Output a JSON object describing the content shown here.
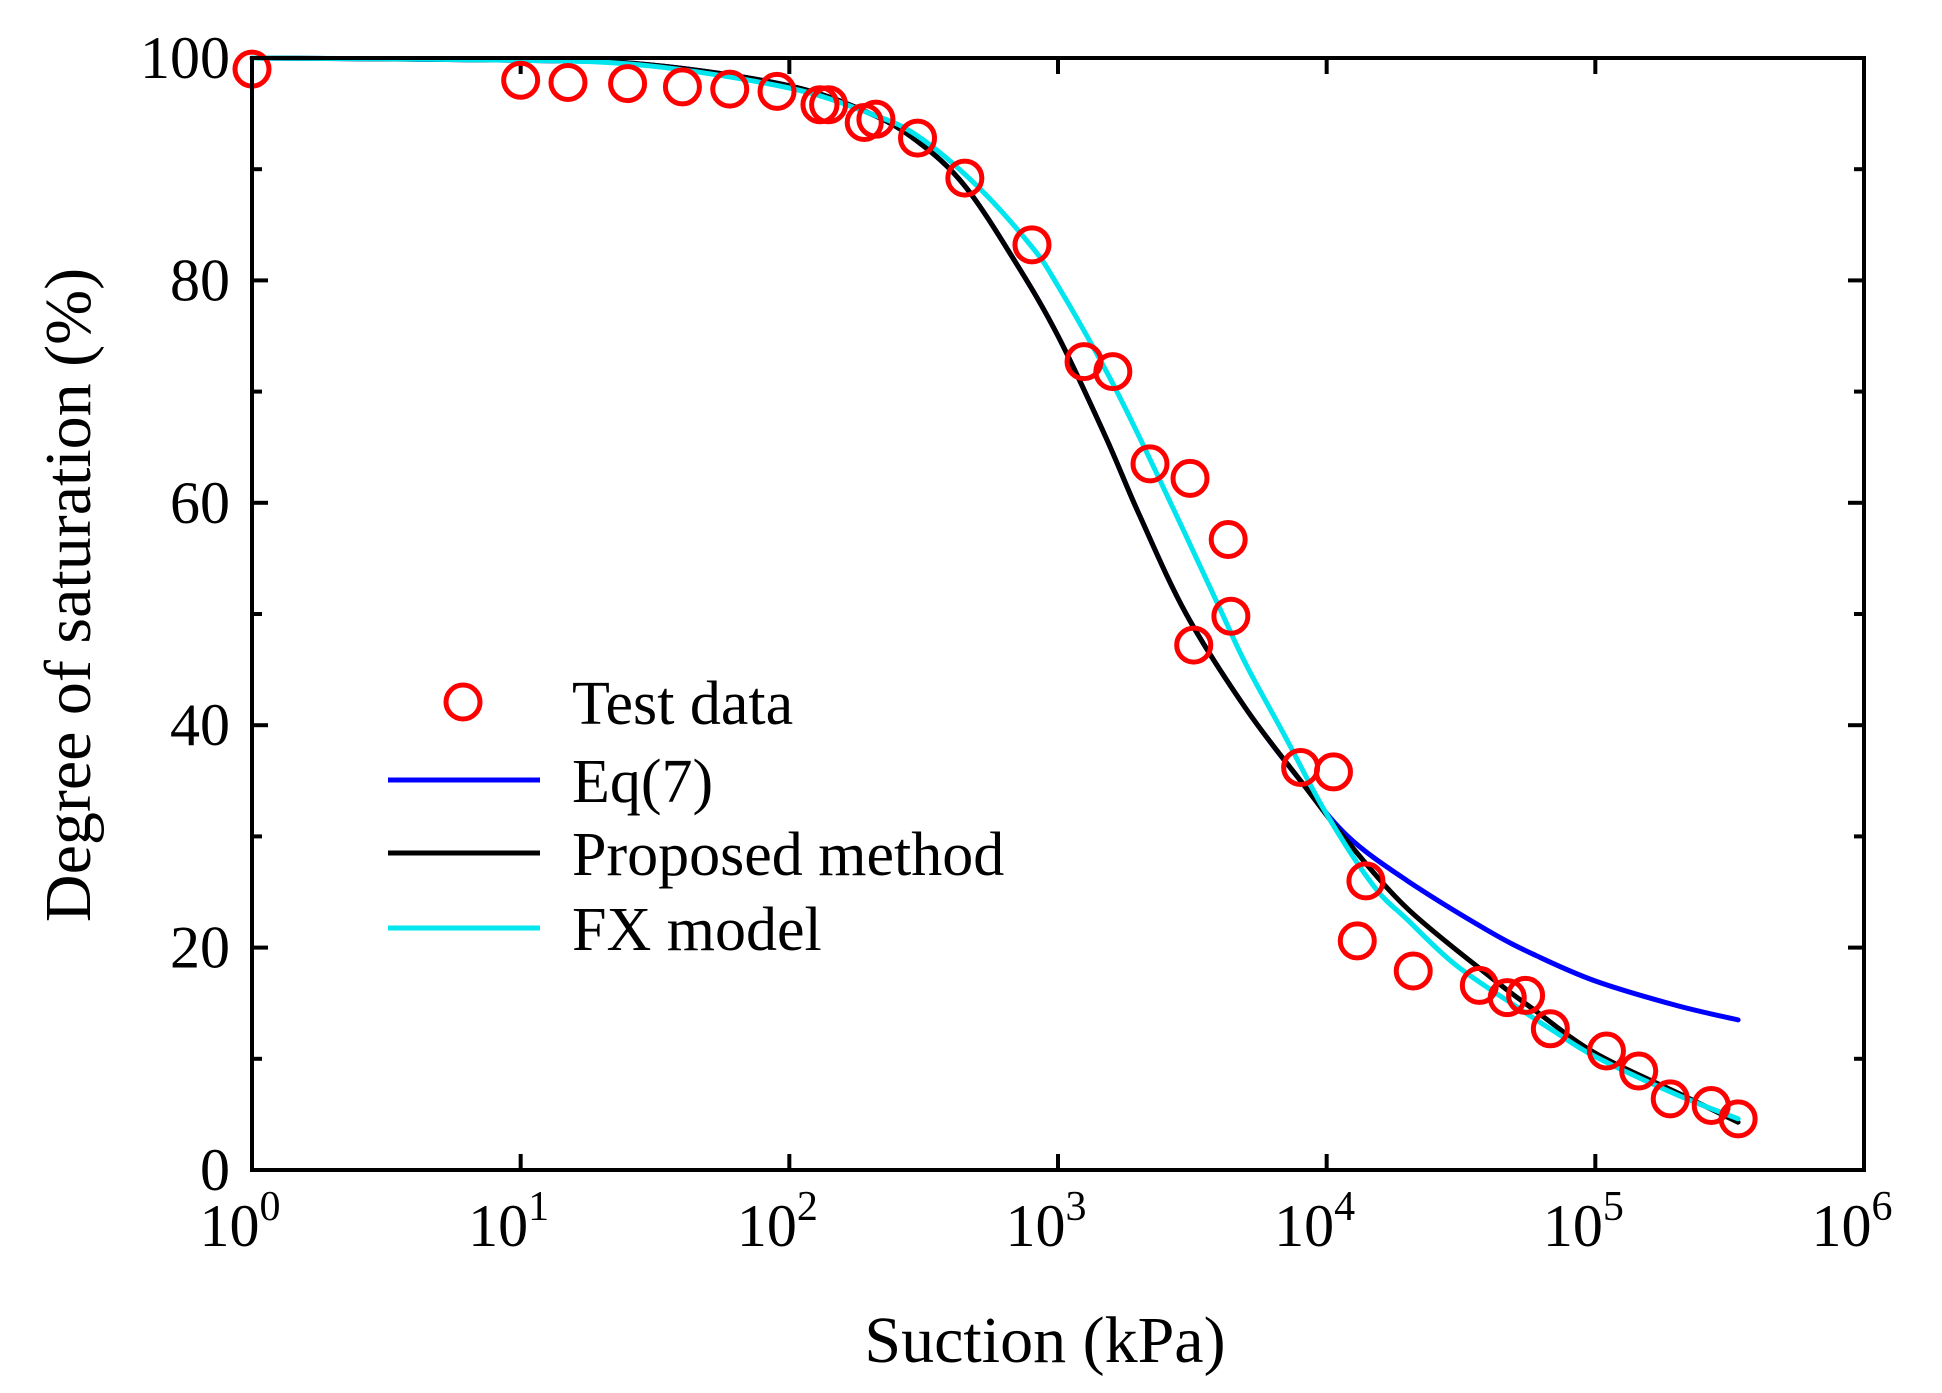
{
  "chart_data": {
    "type": "scatter",
    "title": "",
    "xlabel": "Suction (kPa)",
    "ylabel": "Degree of saturation (%)",
    "xscale": "log",
    "xlim": [
      1,
      1000000
    ],
    "ylim": [
      0,
      100
    ],
    "x_ticks": [
      {
        "value": 1,
        "base": "10",
        "exp": "0"
      },
      {
        "value": 10,
        "base": "10",
        "exp": "1"
      },
      {
        "value": 100,
        "base": "10",
        "exp": "2"
      },
      {
        "value": 1000,
        "base": "10",
        "exp": "3"
      },
      {
        "value": 10000,
        "base": "10",
        "exp": "4"
      },
      {
        "value": 100000,
        "base": "10",
        "exp": "5"
      },
      {
        "value": 1000000,
        "base": "10",
        "exp": "6"
      }
    ],
    "y_ticks": [
      {
        "value": 0,
        "label": "0"
      },
      {
        "value": 20,
        "label": "20"
      },
      {
        "value": 40,
        "label": "40"
      },
      {
        "value": 60,
        "label": "60"
      },
      {
        "value": 80,
        "label": "80"
      },
      {
        "value": 100,
        "label": "100"
      }
    ],
    "y_minor_ticks": [
      10,
      30,
      50,
      70,
      90
    ],
    "legend_position": "center-left",
    "series": [
      {
        "name": "Test data",
        "kind": "markers",
        "color": "#ff0000",
        "points": [
          [
            1,
            99.0
          ],
          [
            10,
            98.0
          ],
          [
            15,
            97.8
          ],
          [
            25,
            97.7
          ],
          [
            40,
            97.4
          ],
          [
            60,
            97.2
          ],
          [
            90,
            97.0
          ],
          [
            130,
            95.8
          ],
          [
            140,
            95.8
          ],
          [
            190,
            94.2
          ],
          [
            210,
            94.5
          ],
          [
            300,
            92.8
          ],
          [
            450,
            89.2
          ],
          [
            800,
            83.2
          ],
          [
            1250,
            72.7
          ],
          [
            1600,
            71.8
          ],
          [
            2200,
            63.5
          ],
          [
            3100,
            62.2
          ],
          [
            3200,
            47.2
          ],
          [
            4300,
            56.7
          ],
          [
            4400,
            49.8
          ],
          [
            8000,
            36.2
          ],
          [
            10600,
            35.8
          ],
          [
            13000,
            20.6
          ],
          [
            14000,
            26.0
          ],
          [
            21000,
            17.9
          ],
          [
            37000,
            16.6
          ],
          [
            47000,
            15.5
          ],
          [
            55000,
            15.7
          ],
          [
            68000,
            12.7
          ],
          [
            110000,
            10.7
          ],
          [
            145000,
            8.9
          ],
          [
            190000,
            6.4
          ],
          [
            270000,
            5.8
          ],
          [
            340000,
            4.6
          ]
        ]
      },
      {
        "name": "Eq(7)",
        "kind": "line",
        "color": "#0000ff",
        "points": [
          [
            1,
            100.0
          ],
          [
            10,
            99.8
          ],
          [
            30,
            99.4
          ],
          [
            100,
            97.5
          ],
          [
            200,
            95.0
          ],
          [
            300,
            92.5
          ],
          [
            450,
            88.5
          ],
          [
            700,
            81.5
          ],
          [
            1000,
            75.0
          ],
          [
            1500,
            66.0
          ],
          [
            2000,
            59.0
          ],
          [
            3000,
            50.0
          ],
          [
            5000,
            41.5
          ],
          [
            8000,
            35.0
          ],
          [
            12000,
            30.0
          ],
          [
            20000,
            26.0
          ],
          [
            40000,
            21.5
          ],
          [
            60000,
            19.3
          ],
          [
            100000,
            17.0
          ],
          [
            200000,
            14.8
          ],
          [
            340000,
            13.5
          ]
        ]
      },
      {
        "name": "Proposed method",
        "kind": "line",
        "color": "#000000",
        "points": [
          [
            1,
            100.0
          ],
          [
            10,
            99.8
          ],
          [
            30,
            99.4
          ],
          [
            100,
            97.5
          ],
          [
            200,
            95.0
          ],
          [
            300,
            92.5
          ],
          [
            450,
            88.5
          ],
          [
            700,
            81.5
          ],
          [
            1000,
            75.0
          ],
          [
            1500,
            66.0
          ],
          [
            2000,
            59.0
          ],
          [
            3000,
            50.0
          ],
          [
            5000,
            41.5
          ],
          [
            8000,
            35.0
          ],
          [
            12000,
            29.5
          ],
          [
            20000,
            23.5
          ],
          [
            40000,
            17.5
          ],
          [
            60000,
            14.3
          ],
          [
            100000,
            10.5
          ],
          [
            200000,
            7.0
          ],
          [
            340000,
            4.3
          ]
        ]
      },
      {
        "name": "FX model",
        "kind": "line",
        "color": "#00e5ee",
        "points": [
          [
            1,
            100.0
          ],
          [
            10,
            99.8
          ],
          [
            30,
            99.3
          ],
          [
            100,
            97.3
          ],
          [
            200,
            95.0
          ],
          [
            300,
            93.0
          ],
          [
            500,
            88.5
          ],
          [
            800,
            83.0
          ],
          [
            1000,
            79.5
          ],
          [
            1500,
            72.0
          ],
          [
            2000,
            66.0
          ],
          [
            3000,
            57.0
          ],
          [
            4000,
            50.5
          ],
          [
            5000,
            45.5
          ],
          [
            7000,
            39.0
          ],
          [
            10000,
            32.0
          ],
          [
            15000,
            25.5
          ],
          [
            20000,
            22.5
          ],
          [
            30000,
            18.5
          ],
          [
            50000,
            14.8
          ],
          [
            70000,
            12.5
          ],
          [
            100000,
            10.2
          ],
          [
            200000,
            6.8
          ],
          [
            340000,
            4.6
          ]
        ]
      }
    ]
  }
}
